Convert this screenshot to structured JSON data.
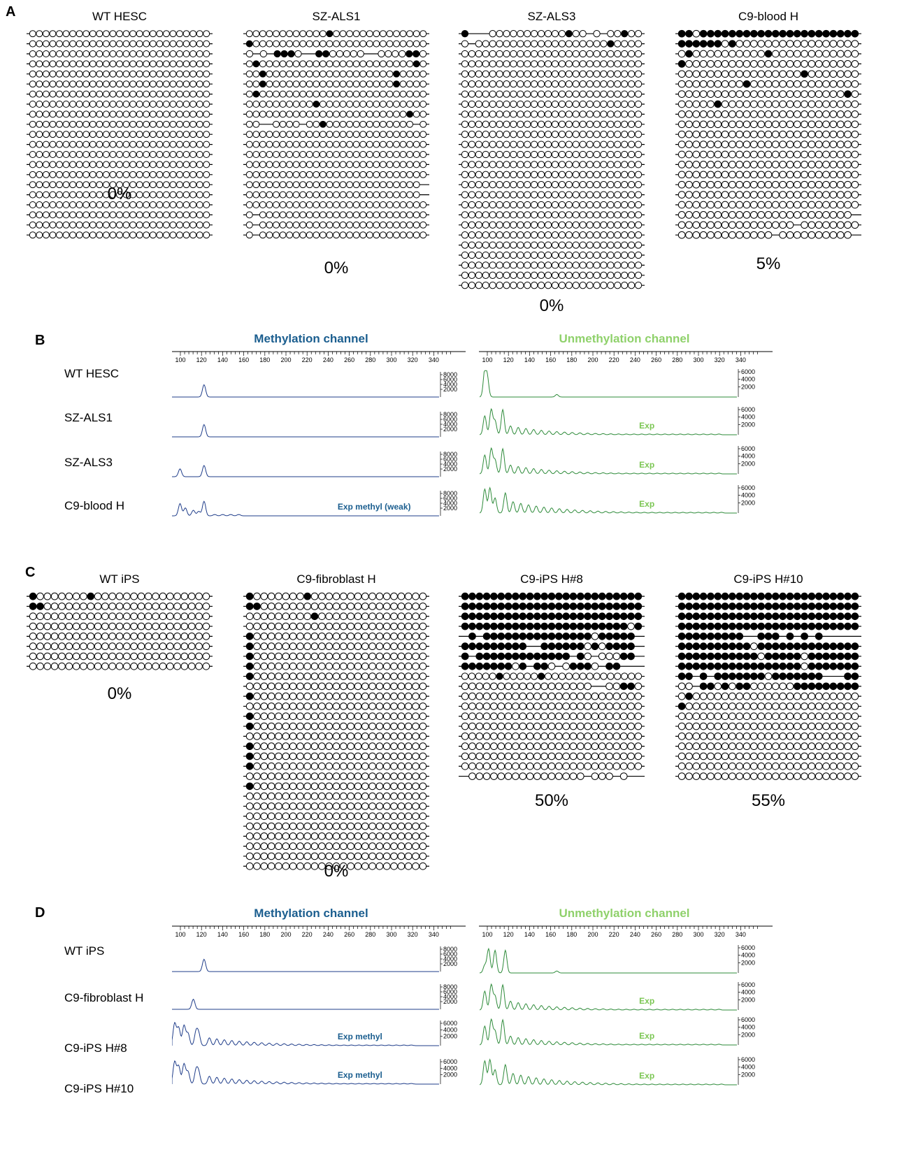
{
  "panel_a": {
    "letter": "A",
    "samples": [
      {
        "name": "WT HESC",
        "percent": "0%",
        "rows": [
          "ooooooooooooooooooooooooooo",
          "ooooooooooooooooooooooooooo",
          "ooooooooooooooooooooooooooo",
          "ooooooooooooooooooooooooooo",
          "ooooooooooooooooooooooooooo",
          "ooooooooooooooooooooooooooo",
          "ooooooooooooooooooooooooooo",
          "ooooooooooooooooooooooooooo",
          "ooooooooooooooooooooooooooo",
          "ooooooooooooooooooooooooooo",
          "ooooooooooooooooooooooooooo",
          "ooooooooooooooooooooooooooo",
          "ooooooooooooooooooooooooooo",
          "ooooooooooooooooooooooooooo",
          "ooooooooooooooooooooooooooo",
          "ooooooooooooooooooooooooooo",
          "ooooooooooooooooooooooooooo",
          "ooooooooooooooooooooooooooo",
          "ooooooooooooooooooooooooooo",
          "ooooooooooooooooooooooooooo",
          "ooooooooooooooooooooooooooo"
        ]
      },
      {
        "name": "SZ-ALS1",
        "percent": "0%",
        "rows": [
          "oooooooooooo●oooooooooooooo",
          "●oooooooooooooooooooooooooo",
          "o-o-●●●o--●●ooooo--oooo●●o",
          "o●ooooooooooooooooooooooo●o",
          "oo●ooooooooooooooooooo●oooo",
          "oo●ooooooooooooooooooo●oooo",
          "o●ooooooooooooooooooooooooo",
          "oooooooooo●oooooooooooooooo",
          "oooooooooooooooooooooooo●oo",
          "oo--oooo-oo●ooooooooooooo-o",
          "ooooooooooooooooooooooooooo",
          "ooooooooooooooooooooooooooo",
          "ooooooooooooooooooooooooooo",
          "ooooooooooooooooooooooooooo",
          "ooooooooooooooooooooooooooo",
          "oooooooooooooooooooooooooo-",
          "oooooooooooooooooooooooooo-",
          "ooooooooooooooooooooooooooo",
          "o-ooooooooooooooooooooooooo",
          "o-ooooooooooooooooooooooooo",
          "o-ooooooooooooooooooooooooo"
        ]
      },
      {
        "name": "SZ-ALS3",
        "percent": "0%",
        "rows": [
          "●---ooooooooooo●oo-o-oo●oo",
          "o-ooooooooooooooooooo●oooo",
          "oooooooooooooooooooooooooo",
          "oooooooooooooooooooooooooo",
          "oooooooooooooooooooooooooo",
          "oooooooooooooooooooooooooo",
          "oooooooooooooooooooooooooo",
          "oooooooooooooooooooooooooo",
          "oooooooooooooooooooooooooo",
          "oooooooooooooooooooooooooo",
          "oooooooooooooooooooooooooo",
          "oooooooooooooooooooooooooo",
          "oooooooooooooooooooooooooo",
          "oooooooooooooooooooooooooo",
          "oooooooooooooooooooooooooo",
          "oooooooooooooooooooooooooo",
          "oooooooooooooooooooooooooo",
          "oooooooooooooooooooooooooo",
          "oooooooooooooooooooooooooo",
          "oooooooooooooooooooooooooo",
          "oooooooooooooooooooooooooo",
          "oooooooooooooooooooooooooo",
          "oooooooooooooooooooooooooo",
          "oooooooooooooooooooooooooo",
          "oooooooooooooooooooooooooo",
          "oooooooooooooooooooooooooo"
        ]
      },
      {
        "name": "C9-blood H",
        "percent": "5%",
        "rows": [
          "●●o●●●●●●●●●●●●●●●●●●●●●●",
          "●●●●●●o●ooooooooooooooooo",
          "o●oooooooooo●oooooooooooo",
          "●oooooooooooooooooooooooo",
          "ooooooooooooooooo●ooooooo",
          "ooooooooo●ooooooooooooooo",
          "ooooooooooooooooooooooo●o",
          "ooooo●ooooooooooooooooooo",
          "ooooooooooooooooooooooooo",
          "ooooooooooooooooooooooooo",
          "ooooooooooooooooooooooooo",
          "ooooooooooooooooooooooooo",
          "ooooooooooooooooooooooooo",
          "ooooooooooooooooooooooooo",
          "ooooooooooooooooooooooooo",
          "ooooooooooooooooooooooooo",
          "ooooooooooooooooooooooooo",
          "ooooooooooooooooooooooooo",
          "oooooooooooooooooooooooo-",
          "oooooooooooooooo-oooooooo",
          "ooooooooooooo-oooooooooo-"
        ]
      }
    ]
  },
  "panel_b": {
    "letter": "B",
    "meth_title": "Methylation channel",
    "unmeth_title": "Unmethylation channel",
    "ruler_ticks": [
      "100",
      "120",
      "140",
      "160",
      "180",
      "200",
      "220",
      "240",
      "260",
      "280",
      "300",
      "320",
      "340"
    ],
    "meth_yticks": [
      "8000",
      "6000",
      "4000",
      "2000"
    ],
    "unmeth_yticks": [
      "6000",
      "4000",
      "2000"
    ],
    "rows": [
      {
        "label": "WT HESC",
        "meth_note": "",
        "unmeth_note": ""
      },
      {
        "label": "SZ-ALS1",
        "meth_note": "",
        "unmeth_note": "Exp"
      },
      {
        "label": "SZ-ALS3",
        "meth_note": "",
        "unmeth_note": "Exp"
      },
      {
        "label": "C9-blood H",
        "meth_note": "Exp methyl (weak)",
        "unmeth_note": "Exp"
      }
    ]
  },
  "panel_c": {
    "letter": "C",
    "samples": [
      {
        "name": "WT iPS",
        "percent": "0%",
        "rows": [
          "●ooooooo●oooooooooooooooo",
          "●●ooooooooooooooooooooooo",
          "ooooooooooooooooooooooooo",
          "ooooooooooooooooooooooooo",
          "ooooooooooooooooooooooooo",
          "ooooooooooooooooooooooooo",
          "ooooooooooooooooooooooooo",
          "ooooooooooooooooooooooooo"
        ]
      },
      {
        "name": "C9-fibroblast H",
        "percent": "0%",
        "rows": [
          "●ooooooo●oooooooooooooooo",
          "●●ooooooooooooooooooooooo",
          "ooooooooo●ooooooooooooooo",
          "ooooooooooooooooooooooooo",
          "●oooooooooooooooooooooooo",
          "●oooooooooooooooooooooooo",
          "●oooooooooooooooooooooooo",
          "●oooooooooooooooooooooooo",
          "●oooooooooooooooooooooooo",
          "ooooooooooooooooooooooooo",
          "●oooooooooooooooooooooooo",
          "ooooooooooooooooooooooooo",
          "●oooooooooooooooooooooooo",
          "●oooooooooooooooooooooooo",
          "ooooooooooooooooooooooooo",
          "●oooooooooooooooooooooooo",
          "●oooooooooooooooooooooooo",
          "●oooooooooooooooooooooooo",
          "ooooooooooooooooooooooooo",
          "●oooooooooooooooooooooooo",
          "ooooooooooooooooooooooooo",
          "ooooooooooooooooooooooooo",
          "ooooooooooooooooooooooooo",
          "ooooooooooooooooooooooooo",
          "ooooooooooooooooooooooooo",
          "ooooooooooooooooooooooooo",
          "ooooooooooooooooooooooooo",
          "ooooooooooooooooooooooooo"
        ]
      },
      {
        "name": "C9-iPS H#8",
        "percent": "50%",
        "rows": [
          "●●●●●●●●●●●●●●●●●●●●●●●●●",
          "●●●●●●●●●●●●●●●●●●●●●●●●●",
          "●●●●●●●●●●●●●●●●●●●●●●●●●",
          "●●●●●●●●●●●●●●●●●●●●●●●o●",
          "-●-●●●●●●●●●●●●●●●o●●●●●-",
          "●●●●●●●●●--●●●●●●o●o●●●●-",
          "●-●●●●●●●●●●●●●-●o-ooo●●-",
          "●●●●●●●o●-●●o-o●●●o-●●---",
          "ooooo●ooooo●oooooooooooooo",
          "oooooooooooooooooo--oo●●o",
          "ooooooooooooooooooooooooo",
          "ooooooooooooooooooooooooo",
          "ooooooooooooooooooooooooo",
          "ooooooooooooooooooooooooo",
          "ooooooooooooooooooooooooo",
          "ooooooooooooooooooooooooo",
          "ooooooooooooooooooooooooo",
          "ooooooooooooooooooooooooo",
          "-oooooooooooooooo-ooo-o--"
        ]
      },
      {
        "name": "C9-iPS H#10",
        "percent": "55%",
        "rows": [
          "●●●●●●●●●●●●●●●●●●●●●●●●●",
          "●●●●●●●●●●●●●●●●●●●●●●●●●",
          "●●●●●●●●●●●●●●●●●●●●●●●●●",
          "●●●●●●●●●●●●●●●●●●●●●●●●●",
          "●●●●●●●●●--●●●-●-●-●-----",
          "●●●●●●●●●●o●●●●●●●●●●●●●●",
          "●●●●●●●●●●●o●●●●●o●●●●●●●",
          "●●●●●●●●●●●●●●●●●o●●●●●●●",
          "●●-●-●●●●●●●o●●●●●●●---●●",
          "oo-●●o●o●●oooooo●●●●●●●●●",
          "o●ooooooooooooooooooooooo",
          "●oooooooooooooooooooooooo",
          "ooooooooooooooooooooooooo",
          "ooooooooooooooooooooooooo",
          "ooooooooooooooooooooooooo",
          "ooooooooooooooooooooooooo",
          "ooooooooooooooooooooooooo",
          "ooooooooooooooooooooooooo",
          "ooooooooooooooooooooooooo"
        ]
      }
    ]
  },
  "panel_d": {
    "letter": "D",
    "meth_title": "Methylation channel",
    "unmeth_title": "Unmethylation channel",
    "ruler_ticks": [
      "100",
      "120",
      "140",
      "160",
      "180",
      "200",
      "220",
      "240",
      "260",
      "280",
      "300",
      "320",
      "340"
    ],
    "meth_yticks_top": [
      "8000",
      "6000",
      "4000",
      "2000"
    ],
    "meth_yticks_low": [
      "6000",
      "4000",
      "2000"
    ],
    "unmeth_yticks": [
      "6000",
      "4000",
      "2000"
    ],
    "rows": [
      {
        "label": "WT iPS",
        "meth_note": "",
        "unmeth_note": ""
      },
      {
        "label": "C9-fibroblast H",
        "meth_note": "",
        "unmeth_note": "Exp"
      },
      {
        "label": "C9-iPS H#8",
        "meth_note": "Exp methyl",
        "unmeth_note": "Exp"
      },
      {
        "label": "C9-iPS H#10",
        "meth_note": "Exp methyl",
        "unmeth_note": "Exp"
      }
    ]
  },
  "colors": {
    "methyl": "#1f3d8a",
    "unmethyl": "#2e8b3a",
    "meth_title": "#1b5e8f",
    "unmeth_title": "#8fd16b",
    "exp_green": "#7bc653",
    "exp_blue": "#1b5e8f"
  }
}
